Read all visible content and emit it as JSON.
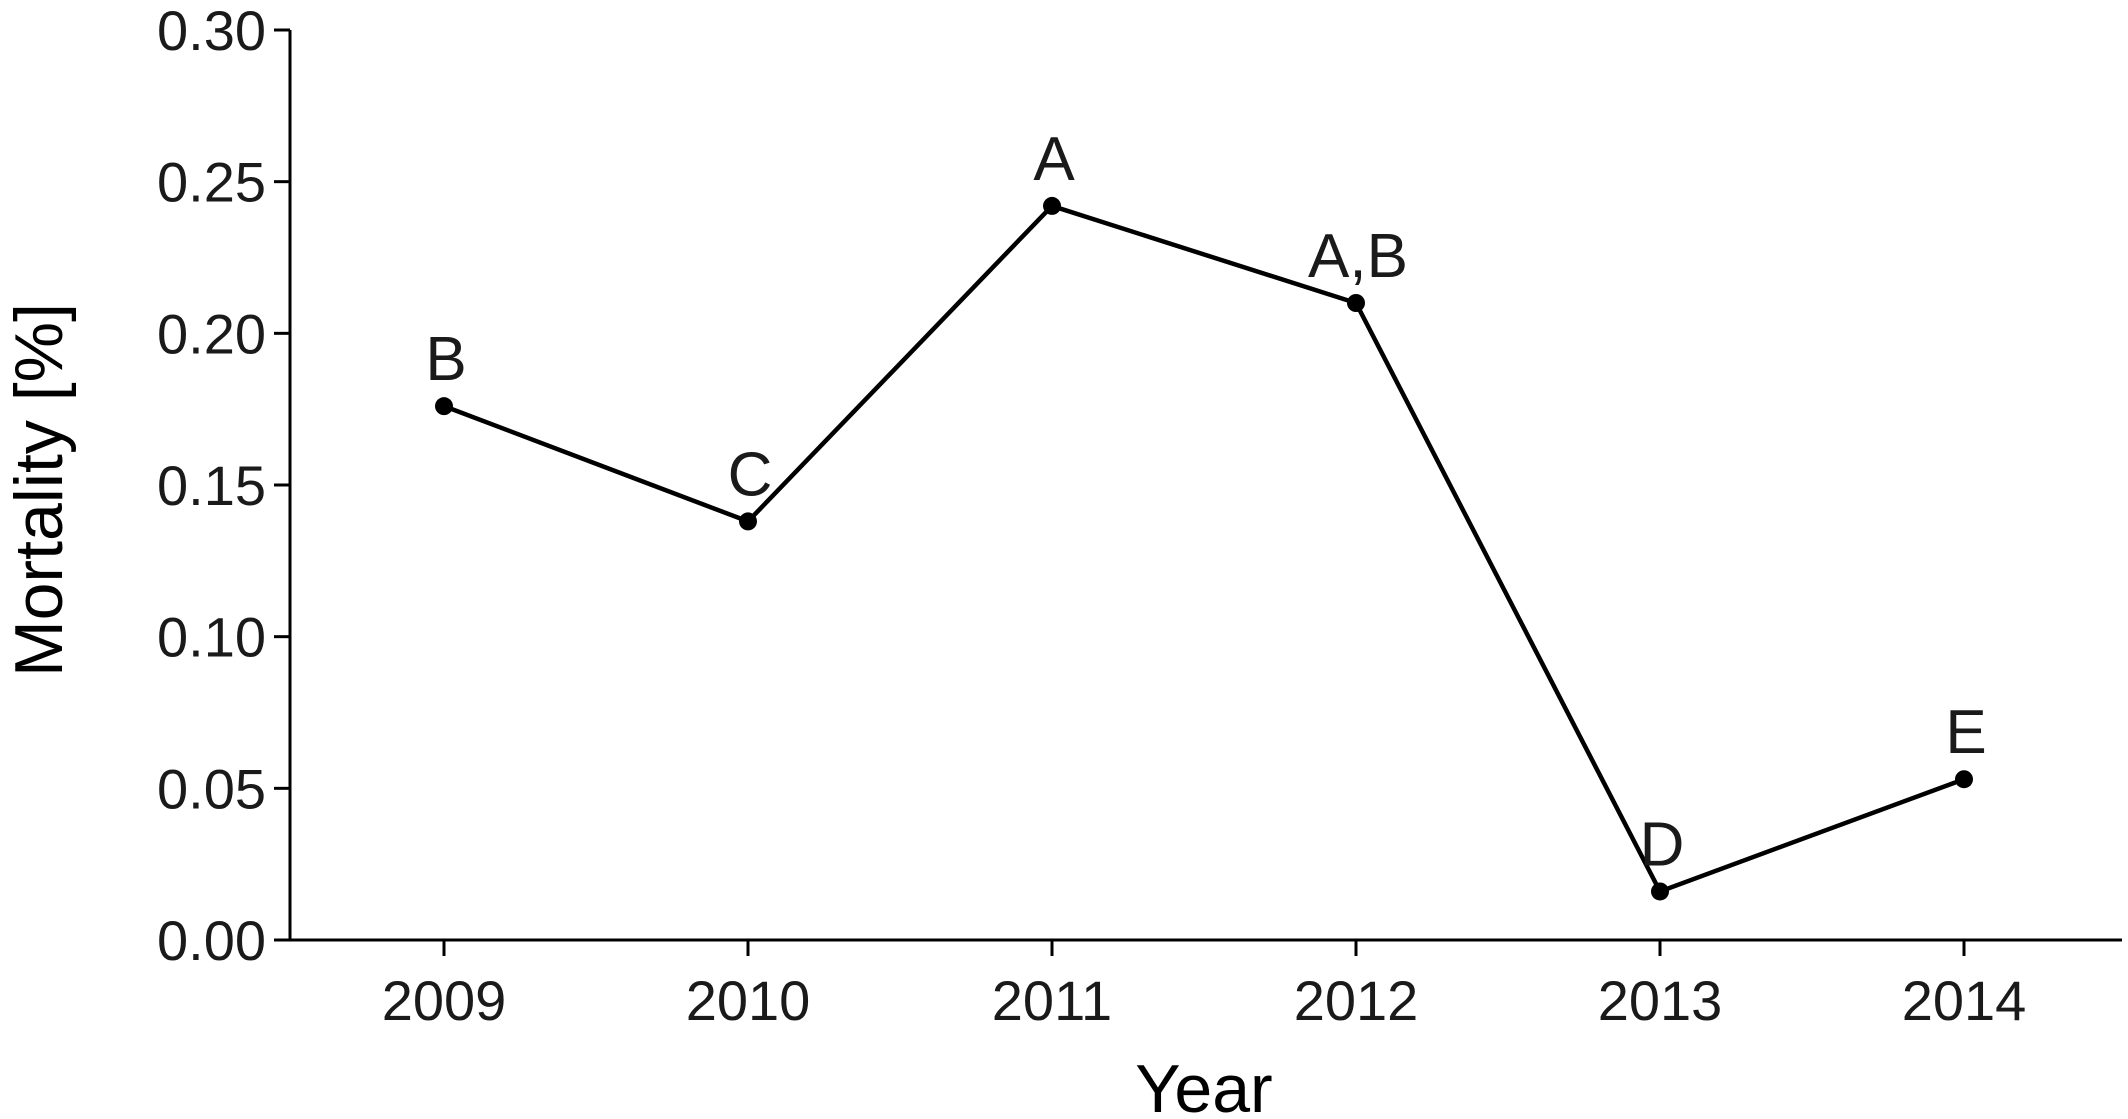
{
  "chart_data": {
    "type": "line",
    "title": "",
    "xlabel": "Year",
    "ylabel": "Mortality [%]",
    "categories": [
      "2009",
      "2010",
      "2011",
      "2012",
      "2013",
      "2014"
    ],
    "series": [
      {
        "values": [
          0.176,
          0.138,
          0.242,
          0.21,
          0.016,
          0.053
        ],
        "point_labels": [
          "B",
          "C",
          "A",
          "A,B",
          "D",
          "E"
        ]
      }
    ],
    "ylim": [
      0.0,
      0.3
    ],
    "yticks": [
      "0.00",
      "0.05",
      "0.10",
      "0.15",
      "0.20",
      "0.25",
      "0.30"
    ],
    "grid": false,
    "legend": "none"
  }
}
